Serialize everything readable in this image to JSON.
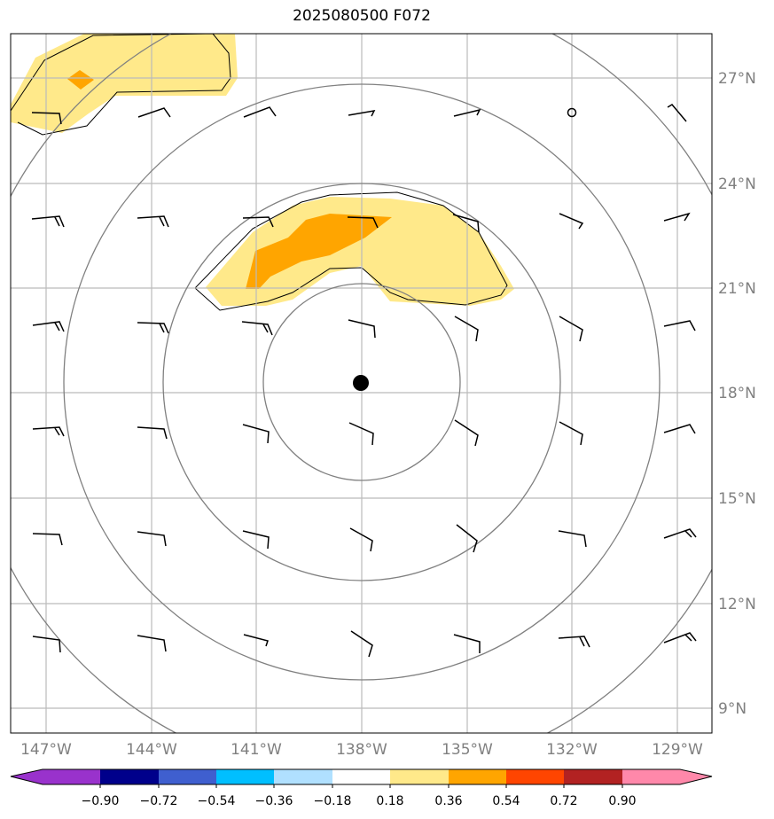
{
  "title": "2025080500 F072",
  "map": {
    "lat_labels": [
      "27°N",
      "24°N",
      "21°N",
      "18°N",
      "15°N",
      "12°N",
      "9°N"
    ],
    "lon_labels": [
      "147°W",
      "144°W",
      "141°W",
      "138°W",
      "135°W",
      "132°W",
      "129°W"
    ],
    "center_marker": "storm-center-dot",
    "range_rings": 4,
    "colors": {
      "gridline": "#bbbbbb",
      "ring": "#808080",
      "fill_low": "#ffe98a",
      "fill_high": "#ffa500"
    }
  },
  "colorbar": {
    "tick_labels": [
      "−0.90",
      "−0.72",
      "−0.54",
      "−0.36",
      "−0.18",
      "0.18",
      "0.36",
      "0.54",
      "0.72",
      "0.90"
    ],
    "colors": [
      "#9932cc",
      "#00008b",
      "#3f5fcf",
      "#00bfff",
      "#b0e0ff",
      "#ffffff",
      "#ffe98a",
      "#ffa500",
      "#ff4500",
      "#b22222",
      "#ff88aa"
    ]
  }
}
